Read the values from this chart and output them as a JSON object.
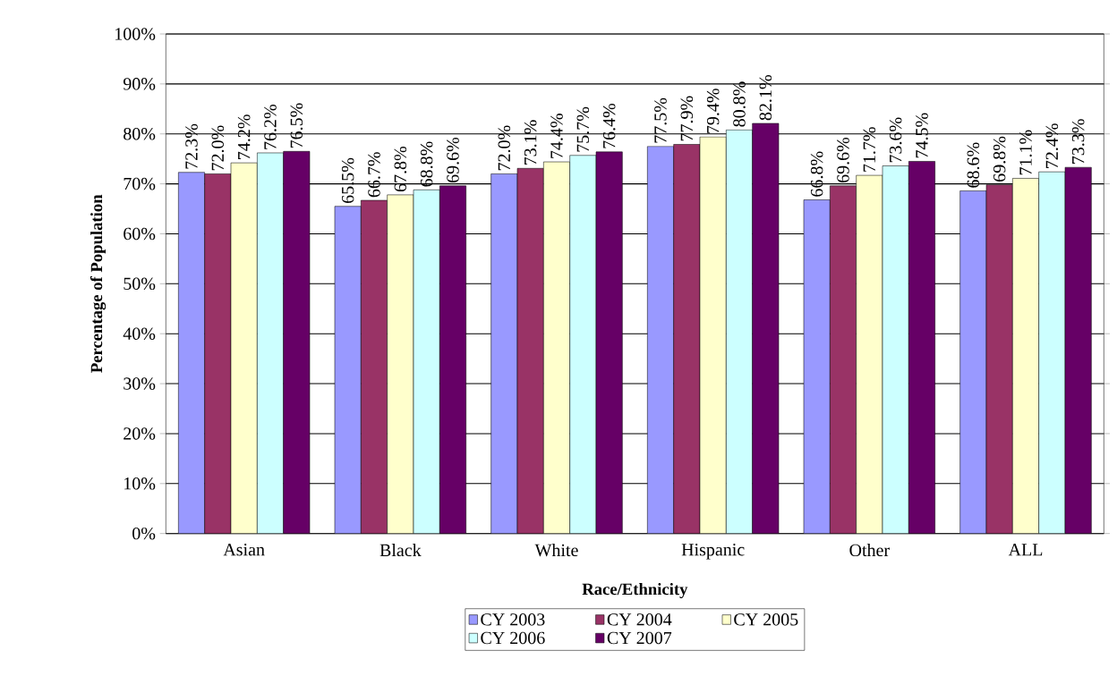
{
  "chart_data": {
    "type": "bar",
    "xlabel": "Race/Ethnicity",
    "ylabel": "Percentage of Population",
    "categories": [
      "Asian",
      "Black",
      "White",
      "Hispanic",
      "Other",
      "ALL"
    ],
    "series": [
      {
        "name": "CY 2003",
        "color": "#9999ff",
        "values": [
          72.3,
          65.5,
          72.0,
          77.5,
          66.8,
          68.6
        ],
        "value_labels": [
          "72.3%",
          "65.5%",
          "72.0%",
          "77.5%",
          "66.8%",
          "68.6%"
        ]
      },
      {
        "name": "CY 2004",
        "color": "#993366",
        "values": [
          72.0,
          66.7,
          73.1,
          77.9,
          69.6,
          69.8
        ],
        "value_labels": [
          "72.0%",
          "66.7%",
          "73.1%",
          "77.9%",
          "69.6%",
          "69.8%"
        ]
      },
      {
        "name": "CY 2005",
        "color": "#ffffcc",
        "values": [
          74.2,
          67.8,
          74.4,
          79.4,
          71.7,
          71.1
        ],
        "value_labels": [
          "74.2%",
          "67.8%",
          "74.4%",
          "79.4%",
          "71.7%",
          "71.1%"
        ]
      },
      {
        "name": "CY 2006",
        "color": "#ccffff",
        "values": [
          76.2,
          68.8,
          75.7,
          80.8,
          73.6,
          72.4
        ],
        "value_labels": [
          "76.2%",
          "68.8%",
          "75.7%",
          "80.8%",
          "73.6%",
          "72.4%"
        ]
      },
      {
        "name": "CY 2007",
        "color": "#660066",
        "values": [
          76.5,
          69.6,
          76.4,
          82.1,
          74.5,
          73.3
        ],
        "value_labels": [
          "76.5%",
          "69.6%",
          "76.4%",
          "82.1%",
          "74.5%",
          "73.3%"
        ]
      }
    ],
    "ylim": [
      0,
      100
    ],
    "yticks": [
      {
        "value": 0,
        "label": "0%"
      },
      {
        "value": 10,
        "label": "10%"
      },
      {
        "value": 20,
        "label": "20%"
      },
      {
        "value": 30,
        "label": "30%"
      },
      {
        "value": 40,
        "label": "40%"
      },
      {
        "value": 50,
        "label": "50%"
      },
      {
        "value": 60,
        "label": "60%"
      },
      {
        "value": 70,
        "label": "70%"
      },
      {
        "value": 80,
        "label": "80%"
      },
      {
        "value": 90,
        "label": "90%"
      },
      {
        "value": 100,
        "label": "100%"
      }
    ],
    "grid": "y",
    "legend": "bottom"
  }
}
